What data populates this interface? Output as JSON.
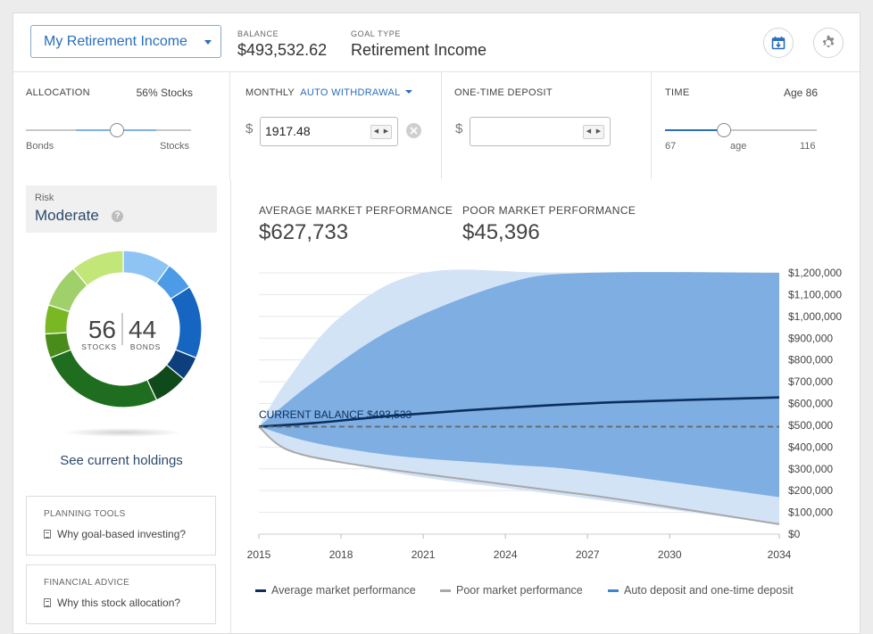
{
  "header": {
    "goal_name": "My Retirement Income",
    "balance_label": "BALANCE",
    "balance_value": "$493,532.62",
    "goal_type_label": "GOAL TYPE",
    "goal_type_value": "Retirement Income",
    "icons": [
      "calendar-download-icon",
      "gear-icon"
    ]
  },
  "allocation": {
    "label": "ALLOCATION",
    "summary": "56% Stocks",
    "left_label": "Bonds",
    "right_label": "Stocks",
    "stocks_fraction": 0.56
  },
  "monthly": {
    "label": "MONTHLY",
    "mode": "AUTO WITHDRAWAL",
    "currency": "$",
    "value": "1917.48"
  },
  "deposit": {
    "label": "ONE-TIME DEPOSIT",
    "currency": "$",
    "value": ""
  },
  "time": {
    "label": "TIME",
    "summary": "Age 86",
    "min": "67",
    "mid": "age",
    "max": "116",
    "min_age": 67,
    "max_age": 116,
    "age": 86
  },
  "risk": {
    "label": "Risk",
    "value": "Moderate"
  },
  "donut": {
    "stocks": "56",
    "stocks_label": "STOCKS",
    "bonds": "44",
    "bonds_label": "BONDS",
    "segments": [
      {
        "pct": 10,
        "color": "#8ec4f3"
      },
      {
        "pct": 6,
        "color": "#4c9be6"
      },
      {
        "pct": 15,
        "color": "#1666c1"
      },
      {
        "pct": 5,
        "color": "#0d3f7c"
      },
      {
        "pct": 7,
        "color": "#0f4a1a"
      },
      {
        "pct": 26,
        "color": "#1f6d1f"
      },
      {
        "pct": 5,
        "color": "#4a8c1b"
      },
      {
        "pct": 6,
        "color": "#79b823"
      },
      {
        "pct": 9,
        "color": "#9fd069"
      },
      {
        "pct": 11,
        "color": "#c2e678"
      }
    ]
  },
  "holdings_link": "See current holdings",
  "planning_tools": {
    "title": "PLANNING TOOLS",
    "link": "Why goal-based investing?"
  },
  "financial_advice": {
    "title": "FINANCIAL ADVICE",
    "link": "Why this stock allocation?"
  },
  "performance": {
    "avg_label": "AVERAGE MARKET PERFORMANCE",
    "avg_value": "$627,733",
    "poor_label": "POOR MARKET PERFORMANCE",
    "poor_value": "$45,396"
  },
  "chart_data": {
    "type": "area",
    "title": "",
    "annotation": "CURRENT BALANCE $493,533",
    "x_ticks": [
      "2015",
      "2018",
      "2021",
      "2024",
      "2027",
      "2030",
      "2034"
    ],
    "y_ticks": [
      "$1,200,000",
      "$1,100,000",
      "$1,000,000",
      "$900,000",
      "$800,000",
      "$700,000",
      "$600,000",
      "$500,000",
      "$400,000",
      "$300,000",
      "$200,000",
      "$100,000",
      "$0"
    ],
    "ylim": [
      0,
      1200000
    ],
    "xlim": [
      2015,
      2034
    ],
    "series": [
      {
        "name": "Average market performance",
        "color": "#0b2f5e",
        "x": [
          2015,
          2017,
          2020,
          2024,
          2028,
          2034
        ],
        "values": [
          493533,
          510000,
          545000,
          580000,
          606000,
          627733
        ]
      },
      {
        "name": "Poor market performance",
        "color": "#a8a8a8",
        "x": [
          2015,
          2016,
          2018,
          2022,
          2027,
          2031,
          2034
        ],
        "values": [
          493533,
          390000,
          330000,
          260000,
          180000,
          105000,
          45396
        ]
      },
      {
        "name": "Current balance",
        "color": "#666666",
        "x": [
          2015,
          2034
        ],
        "values": [
          493533,
          493533
        ]
      }
    ],
    "bands": [
      {
        "name": "outer",
        "color": "#d3e3f6",
        "x": [
          2015,
          2016,
          2018,
          2021,
          2026,
          2034
        ],
        "upper": [
          493533,
          700000,
          1000000,
          1200000,
          1200000,
          1200000
        ],
        "lower": [
          493533,
          390000,
          330000,
          260000,
          180000,
          45396
        ]
      },
      {
        "name": "inner",
        "color": "#7eaee2",
        "x": [
          2015,
          2017,
          2020,
          2024,
          2027,
          2034
        ],
        "upper": [
          493533,
          700000,
          950000,
          1150000,
          1200000,
          1200000
        ],
        "lower": [
          493533,
          420000,
          360000,
          320000,
          290000,
          170000
        ]
      }
    ],
    "legend": [
      {
        "label": "Average market performance",
        "color": "#0b2f5e"
      },
      {
        "label": "Poor market performance",
        "color": "#a8a8a8"
      },
      {
        "label": "Auto deposit and one-time deposit",
        "color": "#3a86d4"
      }
    ]
  }
}
